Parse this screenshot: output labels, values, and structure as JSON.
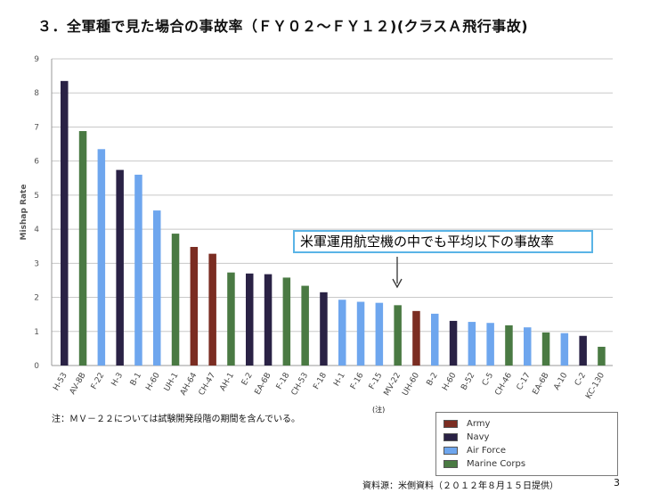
{
  "title": "３．全軍種で見た場合の事故率（ＦＹ０２～ＦＹ１２)(クラスＡ飛行事故)",
  "callout": "米軍運用航空機の中でも平均以下の事故率",
  "note": "注：ＭＶ－２２については試験開発段階の期間を含んでいる。",
  "footnote_mark": "(注)",
  "source": "資料源：米側資料（２０１２年８月１５日提供）",
  "page_number": "3",
  "colors": {
    "Army": "#7b2d22",
    "Navy": "#2a2245",
    "Air Force": "#6ea6ee",
    "Marine Corps": "#4a7a43"
  },
  "chart_data": {
    "type": "bar",
    "ylabel": "Mishap Rate",
    "ylim": [
      0,
      9
    ],
    "yticks": [
      0,
      1,
      2,
      3,
      4,
      5,
      6,
      7,
      8,
      9
    ],
    "grid": true,
    "legend_position": "bottom-right",
    "legend": [
      "Army",
      "Navy",
      "Air Force",
      "Marine Corps"
    ],
    "categories": [
      "H-53",
      "AV-8B",
      "F-22",
      "H-3",
      "B-1",
      "H-60",
      "UH-1",
      "AH-64",
      "CH-47",
      "AH-1",
      "E-2",
      "EA-6B",
      "F-18",
      "CH-53",
      "F-18",
      "H-1",
      "F-16",
      "F-15",
      "MV-22",
      "UH-60",
      "B-2",
      "H-60",
      "B-52",
      "C-5",
      "CH-46",
      "C-17",
      "EA-6B",
      "A-10",
      "C-2",
      "KC-130"
    ],
    "values": [
      8.35,
      6.88,
      6.35,
      5.74,
      5.6,
      4.55,
      3.87,
      3.48,
      3.28,
      2.73,
      2.7,
      2.68,
      2.58,
      2.34,
      2.15,
      1.93,
      1.87,
      1.84,
      1.77,
      1.6,
      1.52,
      1.31,
      1.28,
      1.25,
      1.18,
      1.12,
      0.97,
      0.95,
      0.87,
      0.55
    ],
    "services": [
      "Navy",
      "Marine Corps",
      "Air Force",
      "Navy",
      "Air Force",
      "Air Force",
      "Marine Corps",
      "Army",
      "Army",
      "Marine Corps",
      "Navy",
      "Navy",
      "Marine Corps",
      "Marine Corps",
      "Navy",
      "Air Force",
      "Air Force",
      "Air Force",
      "Marine Corps",
      "Army",
      "Air Force",
      "Navy",
      "Air Force",
      "Air Force",
      "Marine Corps",
      "Air Force",
      "Marine Corps",
      "Air Force",
      "Navy",
      "Marine Corps"
    ]
  }
}
